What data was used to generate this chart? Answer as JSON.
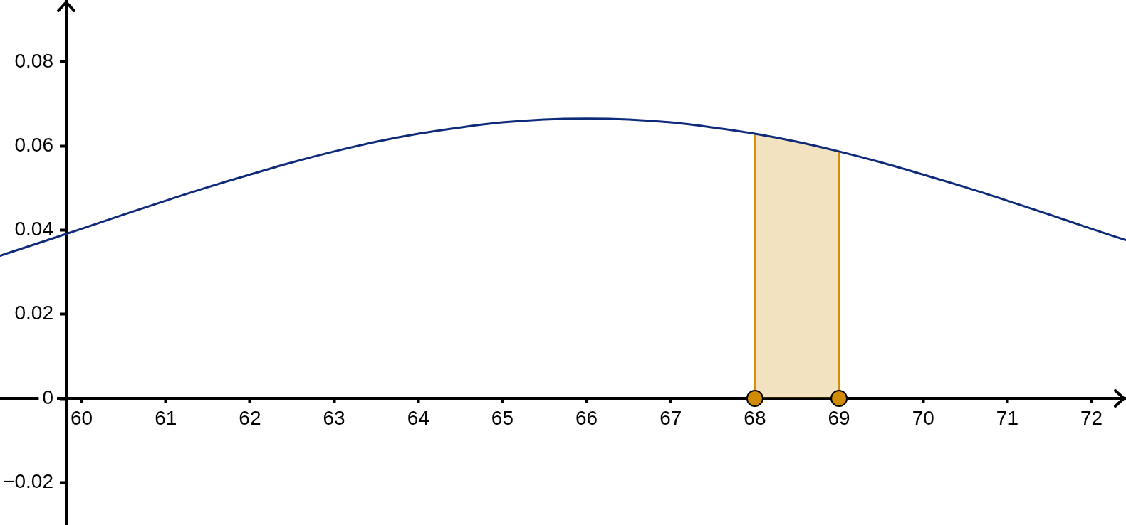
{
  "chart_data": {
    "type": "line",
    "xlim": [
      59.03,
      72.41
    ],
    "ylim": [
      -0.0301,
      0.0947
    ],
    "xticks": [
      60,
      61,
      62,
      63,
      64,
      65,
      66,
      67,
      68,
      69,
      70,
      71,
      72
    ],
    "yticks": [
      {
        "value": -0.02,
        "label": "−0.02"
      },
      0,
      0.02,
      0.04,
      0.06,
      0.08
    ],
    "series": [
      {
        "color": "#0d2b7a",
        "x": [
          59.03,
          59.5,
          60,
          60.5,
          61,
          61.5,
          62,
          62.5,
          63,
          63.5,
          64,
          64.5,
          65,
          65.5,
          66,
          66.5,
          67,
          67.5,
          68,
          68.5,
          69,
          69.5,
          70,
          70.5,
          71,
          71.5,
          72,
          72.41
        ],
        "values": [
          0.0339,
          0.037,
          0.0403,
          0.0437,
          0.047,
          0.0502,
          0.0532,
          0.0561,
          0.0587,
          0.061,
          0.0629,
          0.0644,
          0.0656,
          0.0663,
          0.0665,
          0.0663,
          0.0656,
          0.0644,
          0.0629,
          0.061,
          0.0587,
          0.0561,
          0.0532,
          0.0502,
          0.047,
          0.0437,
          0.0403,
          0.0376
        ]
      },
      {
        "type": "area",
        "color": "#d08b00",
        "x": [
          68,
          68,
          68.25,
          68.5,
          68.75,
          69,
          69
        ],
        "values": [
          0,
          0.0629,
          0.062,
          0.061,
          0.0599,
          0.0587,
          0
        ]
      },
      {
        "type": "scatter",
        "color": "#d08b00",
        "marker": "circle",
        "x": [
          68,
          69
        ],
        "values": [
          0,
          0
        ]
      }
    ]
  }
}
